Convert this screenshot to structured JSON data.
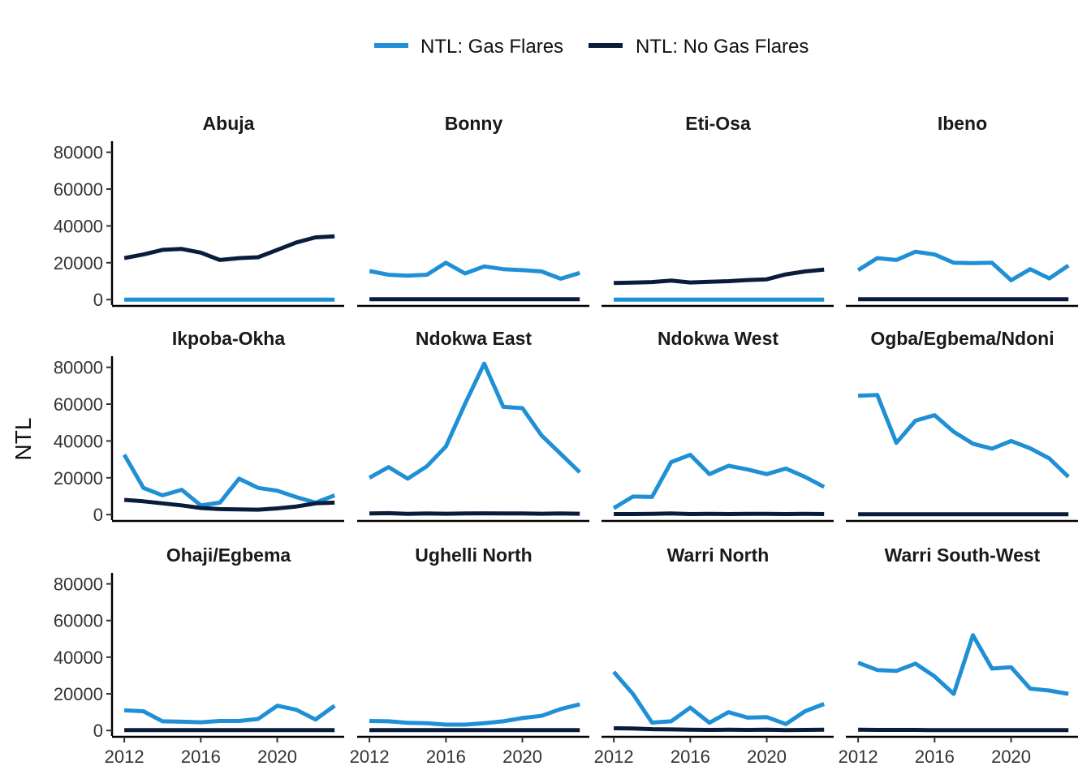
{
  "chart_data": {
    "type": "line",
    "ylabel": "NTL",
    "xlabel": "",
    "ylim": [
      -3000,
      86000
    ],
    "xlim": [
      2011.4,
      2023.5
    ],
    "x_ticks": [
      2012,
      2016,
      2020
    ],
    "y_ticks": [
      0,
      20000,
      40000,
      60000,
      80000
    ],
    "x_tick_labels": [
      "2012",
      "2016",
      "2020"
    ],
    "y_tick_labels": [
      "0",
      "20000",
      "40000",
      "60000",
      "80000"
    ],
    "legend": {
      "position": "top",
      "entries": [
        {
          "name": "NTL: Gas Flares",
          "color": "#1f8fd6"
        },
        {
          "name": "NTL: No Gas Flares",
          "color": "#0a1c3b"
        }
      ]
    },
    "years": [
      2012,
      2013,
      2014,
      2015,
      2016,
      2017,
      2018,
      2019,
      2020,
      2021,
      2022,
      2023
    ],
    "panels": [
      {
        "title": "Abuja",
        "series": [
          {
            "name": "NTL: Gas Flares",
            "values": [
              0,
              0,
              0,
              0,
              0,
              0,
              0,
              0,
              0,
              0,
              0,
              0
            ]
          },
          {
            "name": "NTL: No Gas Flares",
            "values": [
              22500,
              24500,
              27000,
              27500,
              25500,
              21500,
              22500,
              23000,
              27000,
              31000,
              33800,
              34300
            ]
          }
        ]
      },
      {
        "title": "Bonny",
        "series": [
          {
            "name": "NTL: Gas Flares",
            "values": [
              15500,
              13500,
              13000,
              13500,
              20000,
              14200,
              18000,
              16500,
              16000,
              15300,
              11300,
              14500
            ]
          },
          {
            "name": "NTL: No Gas Flares",
            "values": [
              200,
              200,
              200,
              200,
              200,
              200,
              200,
              200,
              200,
              200,
              200,
              200
            ]
          }
        ]
      },
      {
        "title": "Eti-Osa",
        "series": [
          {
            "name": "NTL: Gas Flares",
            "values": [
              0,
              0,
              0,
              0,
              0,
              0,
              0,
              0,
              0,
              0,
              0,
              0
            ]
          },
          {
            "name": "NTL: No Gas Flares",
            "values": [
              9000,
              9200,
              9500,
              10300,
              9300,
              9700,
              10000,
              10600,
              11000,
              13700,
              15300,
              16300
            ]
          }
        ]
      },
      {
        "title": "Ibeno",
        "series": [
          {
            "name": "NTL: Gas Flares",
            "values": [
              16000,
              22500,
              21500,
              26000,
              24500,
              20000,
              19800,
              20000,
              10500,
              16500,
              11500,
              18500
            ]
          },
          {
            "name": "NTL: No Gas Flares",
            "values": [
              200,
              200,
              200,
              200,
              200,
              200,
              200,
              200,
              200,
              200,
              200,
              200
            ]
          }
        ]
      },
      {
        "title": "Ikpoba-Okha",
        "series": [
          {
            "name": "NTL: Gas Flares",
            "values": [
              32500,
              14500,
              10500,
              13500,
              5000,
              6500,
              19500,
              14500,
              13000,
              9500,
              6500,
              10500
            ]
          },
          {
            "name": "NTL: No Gas Flares",
            "values": [
              8000,
              7200,
              6100,
              5000,
              3600,
              3000,
              2800,
              2700,
              3400,
              4400,
              6100,
              6500
            ]
          }
        ]
      },
      {
        "title": "Ndokwa East",
        "series": [
          {
            "name": "NTL: Gas Flares",
            "values": [
              20000,
              25800,
              19500,
              26200,
              37000,
              60200,
              82000,
              58500,
              57800,
              43000,
              33000,
              23000
            ]
          },
          {
            "name": "NTL: No Gas Flares",
            "values": [
              600,
              800,
              400,
              600,
              500,
              600,
              700,
              600,
              600,
              500,
              600,
              500
            ]
          }
        ]
      },
      {
        "title": "Ndokwa West",
        "series": [
          {
            "name": "NTL: Gas Flares",
            "values": [
              3500,
              9800,
              9600,
              28500,
              32500,
              22000,
              26500,
              24500,
              22000,
              25000,
              20500,
              15000
            ]
          },
          {
            "name": "NTL: No Gas Flares",
            "values": [
              300,
              300,
              400,
              600,
              300,
              400,
              300,
              400,
              400,
              300,
              400,
              300
            ]
          }
        ]
      },
      {
        "title": "Ogba/Egbema/Ndoni",
        "series": [
          {
            "name": "NTL: Gas Flares",
            "values": [
              64500,
              65000,
              39000,
              51000,
              54000,
              45000,
              38500,
              35800,
              40000,
              36000,
              30500,
              20500
            ]
          },
          {
            "name": "NTL: No Gas Flares",
            "values": [
              200,
              200,
              200,
              200,
              200,
              200,
              200,
              200,
              200,
              200,
              200,
              200
            ]
          }
        ]
      },
      {
        "title": "Ohaji/Egbema",
        "series": [
          {
            "name": "NTL: Gas Flares",
            "values": [
              11000,
              10500,
              5000,
              4800,
              4500,
              5200,
              5200,
              6300,
              13500,
              11300,
              6000,
              13500
            ]
          },
          {
            "name": "NTL: No Gas Flares",
            "values": [
              200,
              200,
              200,
              200,
              200,
              200,
              200,
              200,
              200,
              200,
              200,
              200
            ]
          }
        ]
      },
      {
        "title": "Ughelli North",
        "series": [
          {
            "name": "NTL: Gas Flares",
            "values": [
              5200,
              5000,
              4200,
              4000,
              3200,
              3200,
              4000,
              5000,
              6800,
              8000,
              11700,
              14300
            ]
          },
          {
            "name": "NTL: No Gas Flares",
            "values": [
              200,
              200,
              200,
              200,
              200,
              200,
              200,
              200,
              200,
              200,
              200,
              200
            ]
          }
        ]
      },
      {
        "title": "Warri North",
        "series": [
          {
            "name": "NTL: Gas Flares",
            "values": [
              32000,
              20000,
              4300,
              5000,
              12500,
              4200,
              10000,
              7000,
              7300,
              3500,
              10500,
              14500
            ]
          },
          {
            "name": "NTL: No Gas Flares",
            "values": [
              1200,
              1100,
              700,
              600,
              400,
              300,
              400,
              300,
              400,
              200,
              300,
              400
            ]
          }
        ]
      },
      {
        "title": "Warri South-West",
        "series": [
          {
            "name": "NTL: Gas Flares",
            "values": [
              37000,
              33000,
              32500,
              36500,
              29500,
              20000,
              52000,
              33800,
              34500,
              22800,
              21800,
              20000
            ]
          },
          {
            "name": "NTL: No Gas Flares",
            "values": [
              400,
              300,
              300,
              300,
              200,
              200,
              200,
              200,
              200,
              200,
              200,
              200
            ]
          }
        ]
      }
    ]
  }
}
